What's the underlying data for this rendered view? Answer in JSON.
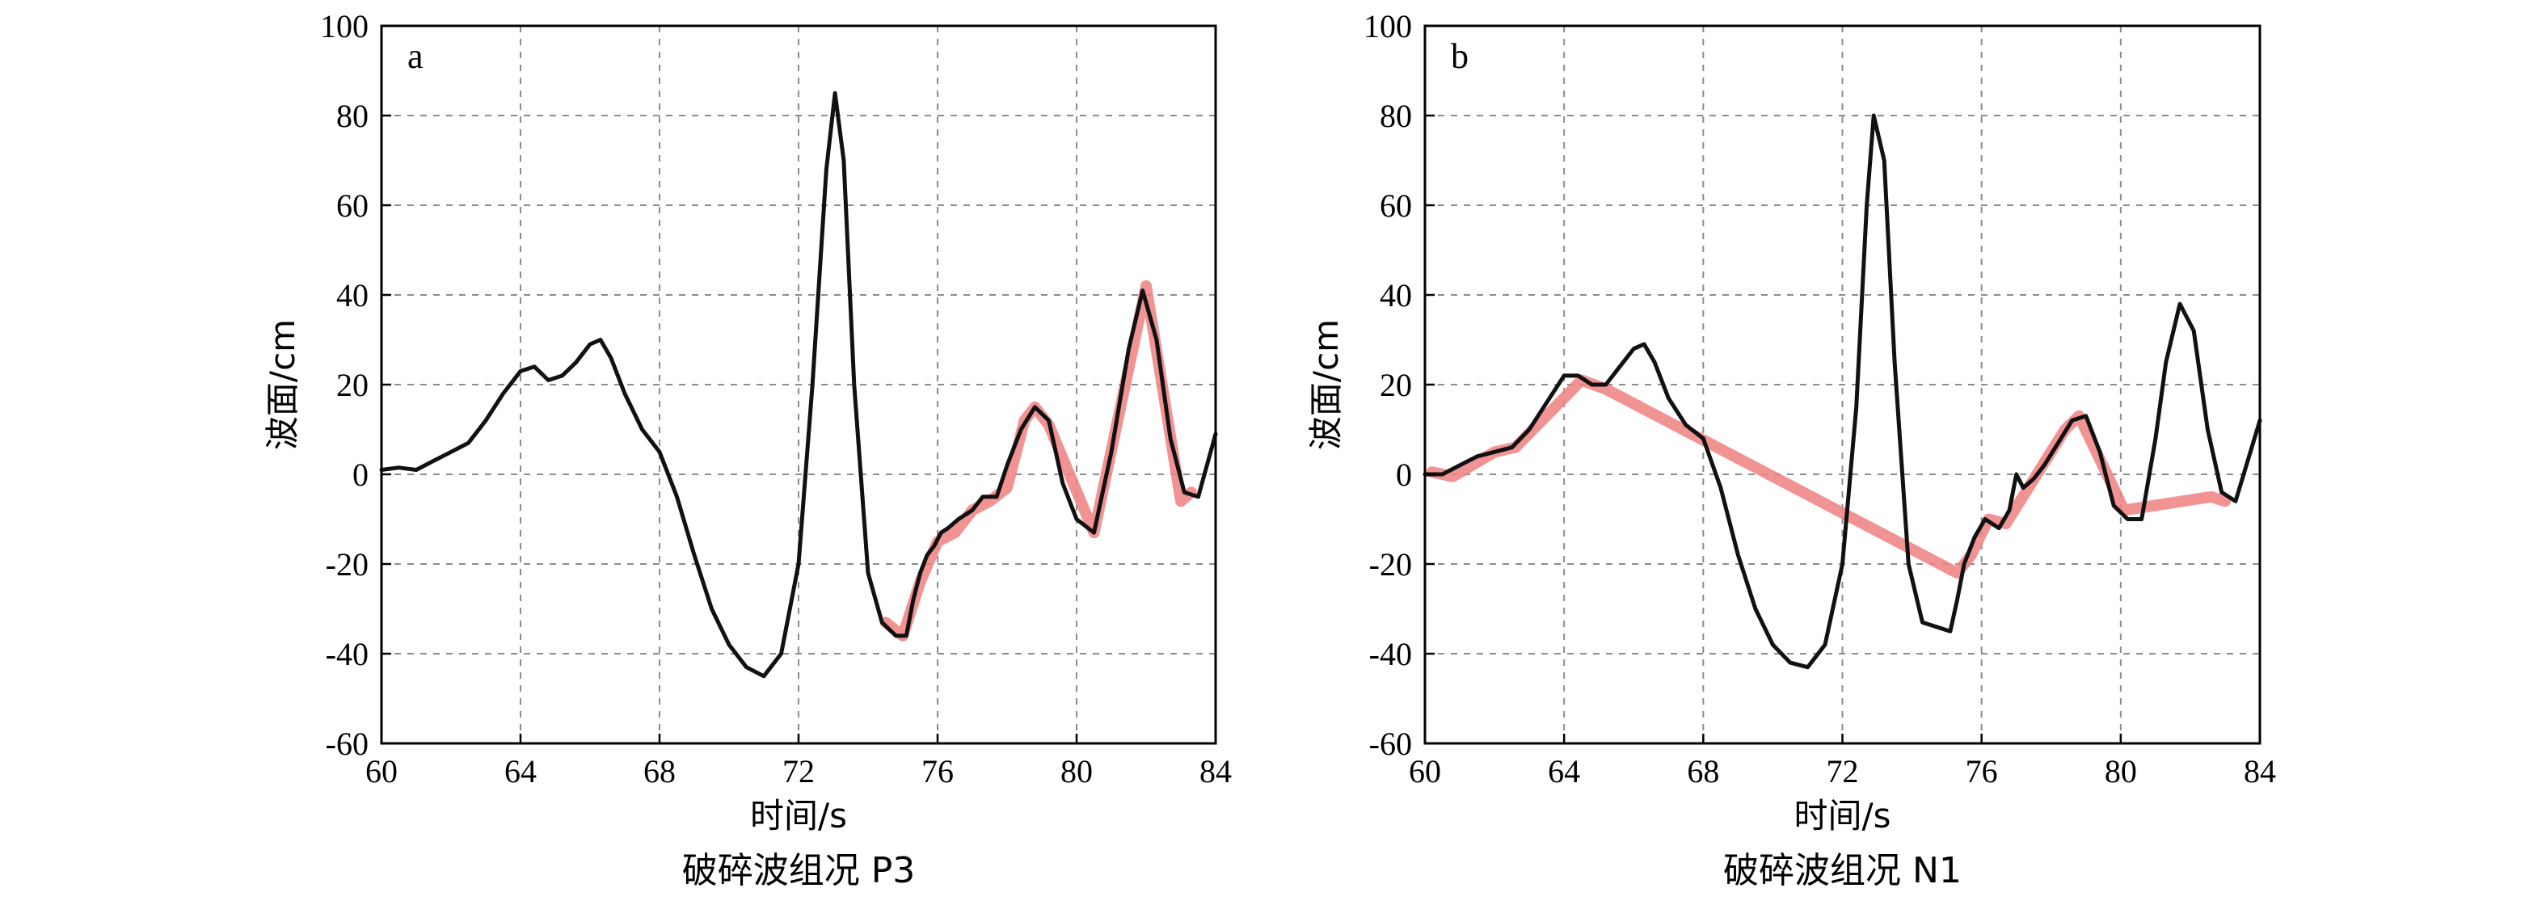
{
  "chart_data": [
    {
      "type": "line",
      "panel_label": "a",
      "title": "",
      "xlabel": "时间/s",
      "ylabel": "波面/cm",
      "caption": "破碎波组况 P3",
      "xlim": [
        60,
        84
      ],
      "ylim": [
        -60,
        100
      ],
      "xticks": [
        60,
        64,
        68,
        72,
        76,
        80,
        84
      ],
      "yticks": [
        -60,
        -40,
        -20,
        0,
        20,
        40,
        60,
        80,
        100
      ],
      "grid": true,
      "series_colors": [
        "#111111",
        "#f08080"
      ],
      "series": [
        {
          "x": [
            60,
            60.5,
            61,
            61.5,
            62,
            62.5,
            63,
            63.5,
            64,
            64.4,
            64.8,
            65.2,
            65.6,
            66,
            66.3,
            66.6,
            67,
            67.5,
            68,
            68.5,
            69,
            69.5,
            70,
            70.5,
            71,
            71.5,
            72,
            72.4,
            72.8,
            73.05,
            73.3,
            73.6,
            74,
            74.4,
            74.8,
            75.1,
            75.3,
            75.5,
            75.7,
            75.9,
            76.1,
            76.3,
            76.6,
            77,
            77.3,
            77.7,
            78,
            78.4,
            78.8,
            79.2,
            79.6,
            80,
            80.5,
            81,
            81.5,
            81.9,
            82.3,
            82.7,
            83.1,
            83.5,
            84
          ],
          "y": [
            1,
            1.5,
            1,
            3,
            5,
            7,
            12,
            18,
            23,
            24,
            21,
            22,
            25,
            29,
            30,
            26,
            18,
            10,
            5,
            -5,
            -18,
            -30,
            -38,
            -43,
            -45,
            -40,
            -20,
            20,
            68,
            85,
            70,
            20,
            -22,
            -33,
            -36,
            -36,
            -28,
            -22,
            -18,
            -16,
            -13,
            -12,
            -10,
            -8,
            -5,
            -5,
            2,
            10,
            15,
            12,
            -2,
            -10,
            -13,
            5,
            28,
            41,
            30,
            8,
            -4,
            -5,
            9
          ]
        },
        {
          "x": [
            74.5,
            75,
            75.5,
            76,
            76.5,
            77,
            77.5,
            78,
            78.5,
            78.8,
            79.2,
            80.5,
            82,
            83,
            83.3
          ],
          "y": [
            -33,
            -36,
            -24,
            -15,
            -13,
            -8,
            -6,
            -3,
            12,
            15,
            11,
            -13,
            42,
            -6,
            -4
          ]
        }
      ]
    },
    {
      "type": "line",
      "panel_label": "b",
      "title": "",
      "xlabel": "时间/s",
      "ylabel": "波面/cm",
      "caption": "破碎波组况 N1",
      "xlim": [
        60,
        84
      ],
      "ylim": [
        -60,
        100
      ],
      "xticks": [
        60,
        64,
        68,
        72,
        76,
        80,
        84
      ],
      "yticks": [
        -60,
        -40,
        -20,
        0,
        20,
        40,
        60,
        80,
        100
      ],
      "grid": true,
      "series_colors": [
        "#111111",
        "#f08080"
      ],
      "series": [
        {
          "x": [
            60,
            60.5,
            61,
            61.5,
            62,
            62.5,
            63,
            63.5,
            64,
            64.4,
            64.8,
            65.2,
            65.6,
            66,
            66.3,
            66.6,
            67,
            67.5,
            68,
            68.5,
            69,
            69.5,
            70,
            70.5,
            71,
            71.5,
            72,
            72.4,
            72.7,
            72.9,
            73.2,
            73.5,
            73.9,
            74.3,
            74.7,
            75.1,
            75.3,
            75.5,
            75.8,
            76.1,
            76.5,
            76.8,
            77,
            77.2,
            77.5,
            77.8,
            78.2,
            78.6,
            79,
            79.4,
            79.8,
            80.2,
            80.6,
            81,
            81.3,
            81.7,
            82.1,
            82.5,
            82.9,
            83.3,
            84
          ],
          "y": [
            0,
            0,
            2,
            4,
            5,
            6,
            10,
            16,
            22,
            22,
            20,
            20,
            24,
            28,
            29,
            25,
            17,
            11,
            8,
            -3,
            -18,
            -30,
            -38,
            -42,
            -43,
            -38,
            -20,
            15,
            60,
            80,
            70,
            25,
            -20,
            -33,
            -34,
            -35,
            -28,
            -20,
            -14,
            -10,
            -12,
            -8,
            0,
            -3,
            -1,
            2,
            7,
            12,
            13,
            5,
            -7,
            -10,
            -10,
            8,
            25,
            38,
            32,
            10,
            -4,
            -6,
            12
          ]
        },
        {
          "x": [
            60.2,
            60.8,
            62,
            62.6,
            64.5,
            65.2,
            75.3,
            75.7,
            76.2,
            76.7,
            78.4,
            78.8,
            80.1,
            82.6,
            83
          ],
          "y": [
            0.5,
            -0.5,
            5,
            6,
            21,
            19,
            -22,
            -18,
            -10,
            -11,
            10,
            13,
            -8,
            -5,
            -6
          ]
        }
      ]
    }
  ]
}
